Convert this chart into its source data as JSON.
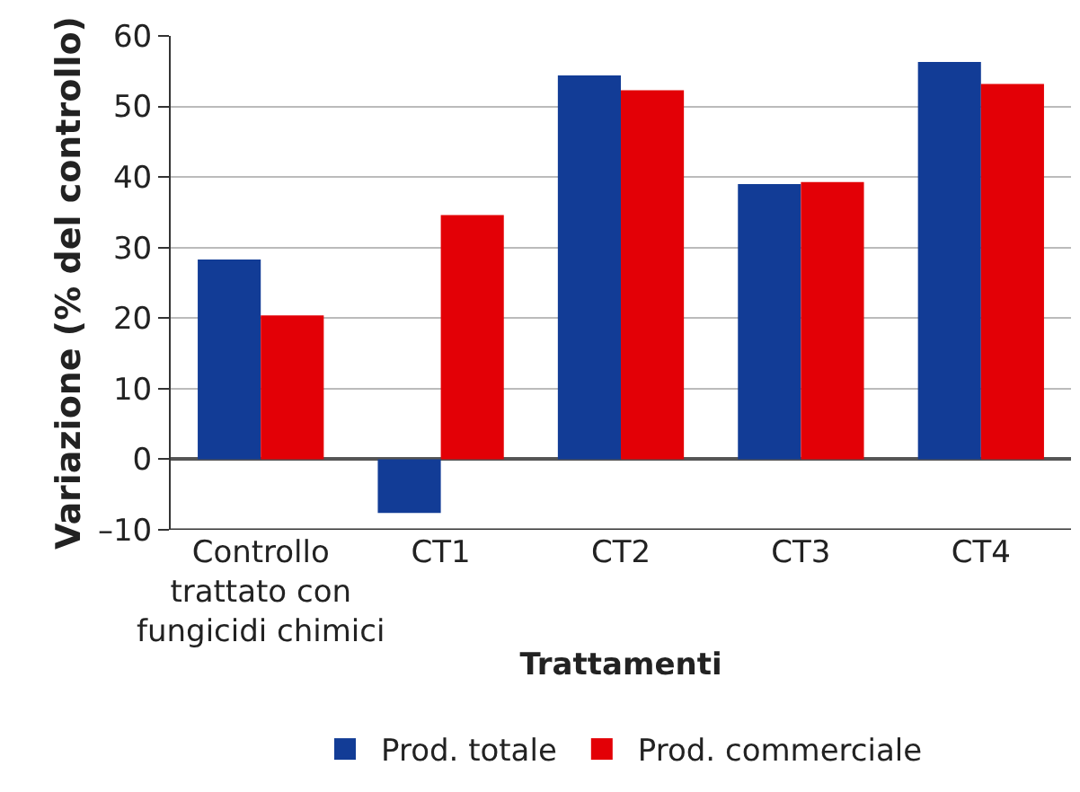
{
  "chart_data": {
    "type": "bar",
    "xlabel": "Trattamenti",
    "ylabel": "Variazione (% del controllo)",
    "categories": [
      "Controllo\ntrattato con\nfungicidi chimici",
      "CT1",
      "CT2",
      "CT3",
      "CT4"
    ],
    "series": [
      {
        "name": "Prod. totale",
        "color": "#123c96",
        "values": [
          28.3,
          -7.6,
          54.4,
          39.0,
          56.3
        ]
      },
      {
        "name": "Prod. commerciale",
        "color": "#e30006",
        "values": [
          20.4,
          34.6,
          52.3,
          39.3,
          53.2
        ]
      }
    ],
    "ylim": [
      -10,
      60
    ],
    "yticks": [
      {
        "value": -10,
        "label": "–10"
      },
      0,
      10,
      20,
      30,
      40,
      50,
      60
    ],
    "grid": "y",
    "legend": "bottom"
  }
}
